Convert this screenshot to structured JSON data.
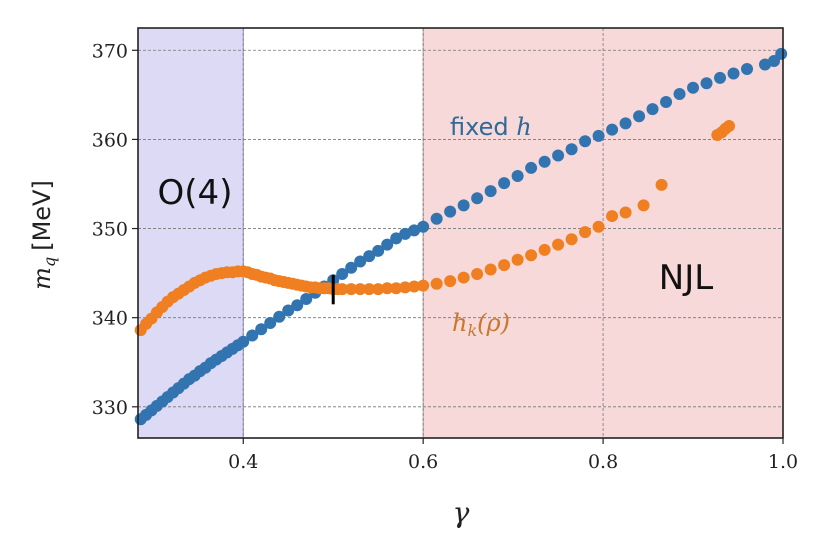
{
  "chart_data": {
    "type": "scatter",
    "xlabel": "γ",
    "ylabel_main": "m",
    "ylabel_sub": "q",
    "ylabel_unit": "[MeV]",
    "xlim": [
      0.283,
      1.0
    ],
    "ylim": [
      326.5,
      372.5
    ],
    "xticks": [
      0.4,
      0.6,
      0.8,
      1.0
    ],
    "xtick_labels": [
      "0.4",
      "0.6",
      "0.8",
      "1.0"
    ],
    "yticks": [
      330,
      340,
      350,
      360,
      370
    ],
    "ytick_labels": [
      "330",
      "340",
      "350",
      "360",
      "370"
    ],
    "grid": true,
    "regions": [
      {
        "label": "O(4)",
        "x_range": [
          0.283,
          0.4
        ],
        "color": "#dcdaf5"
      },
      {
        "label": "NJL",
        "x_range": [
          0.6,
          1.0
        ],
        "color": "#f7d9da"
      }
    ],
    "marker": {
      "x": 0.5,
      "y_range": [
        341.5,
        344.8
      ]
    },
    "series": [
      {
        "name": "fixed h",
        "label_main": "fixed ",
        "label_var": "h",
        "color": "#3274b0",
        "x": [
          0.286,
          0.292,
          0.298,
          0.304,
          0.31,
          0.316,
          0.322,
          0.328,
          0.334,
          0.34,
          0.346,
          0.352,
          0.358,
          0.364,
          0.37,
          0.376,
          0.382,
          0.388,
          0.394,
          0.4,
          0.41,
          0.42,
          0.43,
          0.44,
          0.45,
          0.46,
          0.47,
          0.48,
          0.49,
          0.5,
          0.51,
          0.52,
          0.53,
          0.54,
          0.55,
          0.56,
          0.57,
          0.58,
          0.59,
          0.6,
          0.615,
          0.63,
          0.645,
          0.66,
          0.675,
          0.69,
          0.705,
          0.72,
          0.735,
          0.75,
          0.765,
          0.78,
          0.795,
          0.81,
          0.825,
          0.84,
          0.855,
          0.87,
          0.885,
          0.9,
          0.915,
          0.93,
          0.945,
          0.96,
          0.98,
          0.99,
          0.998
        ],
        "y": [
          328.6,
          329.1,
          329.6,
          330.1,
          330.6,
          331.1,
          331.6,
          332.1,
          332.6,
          333.1,
          333.5,
          334.0,
          334.4,
          334.9,
          335.3,
          335.7,
          336.1,
          336.5,
          336.9,
          337.3,
          338.0,
          338.7,
          339.4,
          340.1,
          340.8,
          341.4,
          342.1,
          342.8,
          343.5,
          344.2,
          344.9,
          345.6,
          346.3,
          346.9,
          347.5,
          348.2,
          348.9,
          349.4,
          349.8,
          350.2,
          351.1,
          351.9,
          352.6,
          353.4,
          354.2,
          355.1,
          355.9,
          356.8,
          357.5,
          358.2,
          358.9,
          359.8,
          360.4,
          361.1,
          361.8,
          362.6,
          363.4,
          364.2,
          365.1,
          365.8,
          366.3,
          366.9,
          367.4,
          367.9,
          368.4,
          368.8,
          369.6
        ]
      },
      {
        "name": "h_k(ρ)",
        "label_main": "h",
        "label_sub": "k",
        "label_rest": "(ρ)",
        "color": "#f07f22",
        "x": [
          0.286,
          0.292,
          0.298,
          0.304,
          0.31,
          0.316,
          0.322,
          0.328,
          0.334,
          0.34,
          0.346,
          0.352,
          0.358,
          0.364,
          0.37,
          0.376,
          0.382,
          0.388,
          0.394,
          0.4,
          0.405,
          0.41,
          0.415,
          0.42,
          0.425,
          0.43,
          0.435,
          0.44,
          0.445,
          0.45,
          0.455,
          0.46,
          0.465,
          0.47,
          0.475,
          0.48,
          0.485,
          0.49,
          0.495,
          0.5,
          0.505,
          0.51,
          0.52,
          0.53,
          0.54,
          0.55,
          0.56,
          0.57,
          0.58,
          0.59,
          0.6,
          0.615,
          0.63,
          0.645,
          0.66,
          0.675,
          0.69,
          0.705,
          0.72,
          0.735,
          0.75,
          0.765,
          0.78,
          0.795,
          0.81,
          0.825,
          0.845,
          0.865,
          0.927,
          0.932,
          0.936,
          0.94
        ],
        "y": [
          338.6,
          339.3,
          339.9,
          340.6,
          341.2,
          341.8,
          342.3,
          342.7,
          343.1,
          343.5,
          343.9,
          344.2,
          344.5,
          344.7,
          344.9,
          345.0,
          345.1,
          345.1,
          345.2,
          345.2,
          345.1,
          344.9,
          344.8,
          344.6,
          344.5,
          344.4,
          344.2,
          344.1,
          344.0,
          343.9,
          343.8,
          343.7,
          343.6,
          343.5,
          343.4,
          343.4,
          343.3,
          343.3,
          343.3,
          343.2,
          343.2,
          343.2,
          343.2,
          343.2,
          343.2,
          343.2,
          343.3,
          343.3,
          343.4,
          343.5,
          343.6,
          343.8,
          344.1,
          344.5,
          344.9,
          345.4,
          345.9,
          346.5,
          347.0,
          347.6,
          348.2,
          348.8,
          349.6,
          350.2,
          351.4,
          351.8,
          352.6,
          354.9,
          360.5,
          360.8,
          361.2,
          361.5
        ]
      }
    ]
  }
}
